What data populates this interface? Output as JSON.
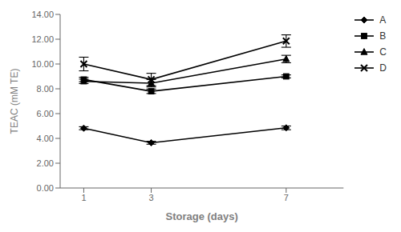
{
  "chart_data": {
    "type": "line",
    "x_label": "Storage (days)",
    "y_label": "TEAC (mM TE)",
    "x": [
      1,
      3,
      7
    ],
    "series": [
      {
        "name": "A",
        "values": [
          4.82,
          3.65,
          4.85
        ],
        "yerr": [
          0.12,
          0.12,
          0.15
        ],
        "marker": "diamond",
        "color": "black"
      },
      {
        "name": "B",
        "values": [
          8.75,
          7.8,
          9.0
        ],
        "yerr": [
          0.18,
          0.18,
          0.12
        ],
        "marker": "square",
        "color": "black"
      },
      {
        "name": "C",
        "values": [
          8.6,
          8.45,
          10.4
        ],
        "yerr": [
          0.18,
          0.3,
          0.3
        ],
        "marker": "triangle",
        "color": "black"
      },
      {
        "name": "D",
        "values": [
          10.0,
          8.75,
          11.85
        ],
        "yerr": [
          0.55,
          0.5,
          0.5
        ],
        "marker": "x",
        "color": "black"
      }
    ],
    "xlim": [
      0.3,
      8.7
    ],
    "xticks": [
      1,
      3,
      7
    ],
    "ylim": [
      0.0,
      14.0
    ],
    "yticks": [
      {
        "value": 0.0,
        "label": "0.00"
      },
      {
        "value": 2.0,
        "label": "2.00"
      },
      {
        "value": 4.0,
        "label": "4.00"
      },
      {
        "value": 6.0,
        "label": "6.00"
      },
      {
        "value": 8.0,
        "label": "8.00"
      },
      {
        "value": 10.0,
        "label": "10.00"
      },
      {
        "value": 12.0,
        "label": "12.00"
      },
      {
        "value": 14.0,
        "label": "14.00"
      }
    ],
    "grid": false,
    "legend": "upper right"
  }
}
